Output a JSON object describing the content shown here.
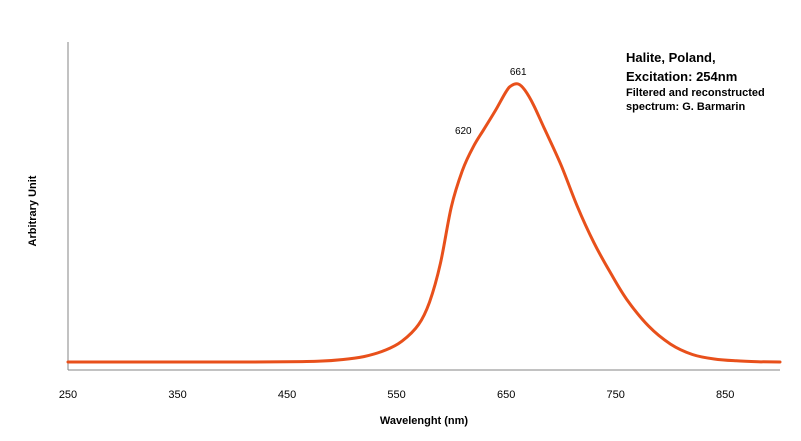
{
  "annotation": {
    "title_line1": "Halite, Poland,",
    "title_line2": "Excitation: 254nm",
    "credit_line1": "Filtered and reconstructed",
    "credit_line2": "spectrum: G. Barmarin"
  },
  "chart_data": {
    "type": "line",
    "xlabel": "Wavelenght (nm)",
    "ylabel": "Arbitrary Unit",
    "xlim": [
      250,
      900
    ],
    "ylim": [
      0,
      1.0
    ],
    "x_ticks": [
      "250",
      "350",
      "450",
      "550",
      "650",
      "750",
      "850"
    ],
    "x_tick_values": [
      250,
      350,
      450,
      550,
      650,
      750,
      850
    ],
    "y_ticks_shown": false,
    "grid": false,
    "color": "#e8501b",
    "series": [
      {
        "x": [
          250,
          300,
          350,
          400,
          450,
          480,
          500,
          520,
          540,
          555,
          570,
          580,
          590,
          600,
          610,
          620,
          630,
          640,
          650,
          655,
          661,
          667,
          675,
          685,
          700,
          715,
          730,
          745,
          760,
          780,
          800,
          820,
          840,
          860,
          880,
          900
        ],
        "y": [
          0.0,
          0.0,
          0.0,
          0.0,
          0.001,
          0.003,
          0.008,
          0.018,
          0.04,
          0.07,
          0.125,
          0.2,
          0.33,
          0.52,
          0.64,
          0.72,
          0.78,
          0.84,
          0.905,
          0.925,
          0.93,
          0.91,
          0.86,
          0.78,
          0.66,
          0.52,
          0.4,
          0.3,
          0.21,
          0.12,
          0.06,
          0.025,
          0.01,
          0.004,
          0.001,
          0.0
        ]
      }
    ],
    "annotations": [
      {
        "text": "661",
        "x": 661,
        "y": 0.93
      },
      {
        "text": "620",
        "x": 620,
        "y": 0.72
      }
    ]
  }
}
